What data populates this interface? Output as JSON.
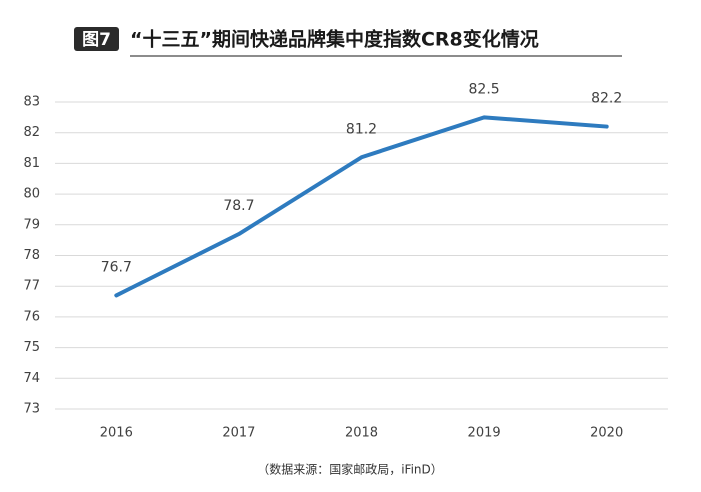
{
  "chart_data": {
    "type": "line",
    "figure_label": "图7",
    "title": "“十三五”期间快递品牌集中度指数CR8变化情况",
    "source": "（数据来源：国家邮政局，iFinD）",
    "categories": [
      "2016",
      "2017",
      "2018",
      "2019",
      "2020"
    ],
    "series": [
      {
        "name": "CR8",
        "color": "#2e7bbf",
        "values": [
          76.7,
          78.7,
          81.2,
          82.5,
          82.2
        ]
      }
    ],
    "ylim": [
      73,
      83
    ],
    "yticks": [
      73,
      74,
      75,
      76,
      77,
      78,
      79,
      80,
      81,
      82,
      83
    ],
    "grid": true
  }
}
